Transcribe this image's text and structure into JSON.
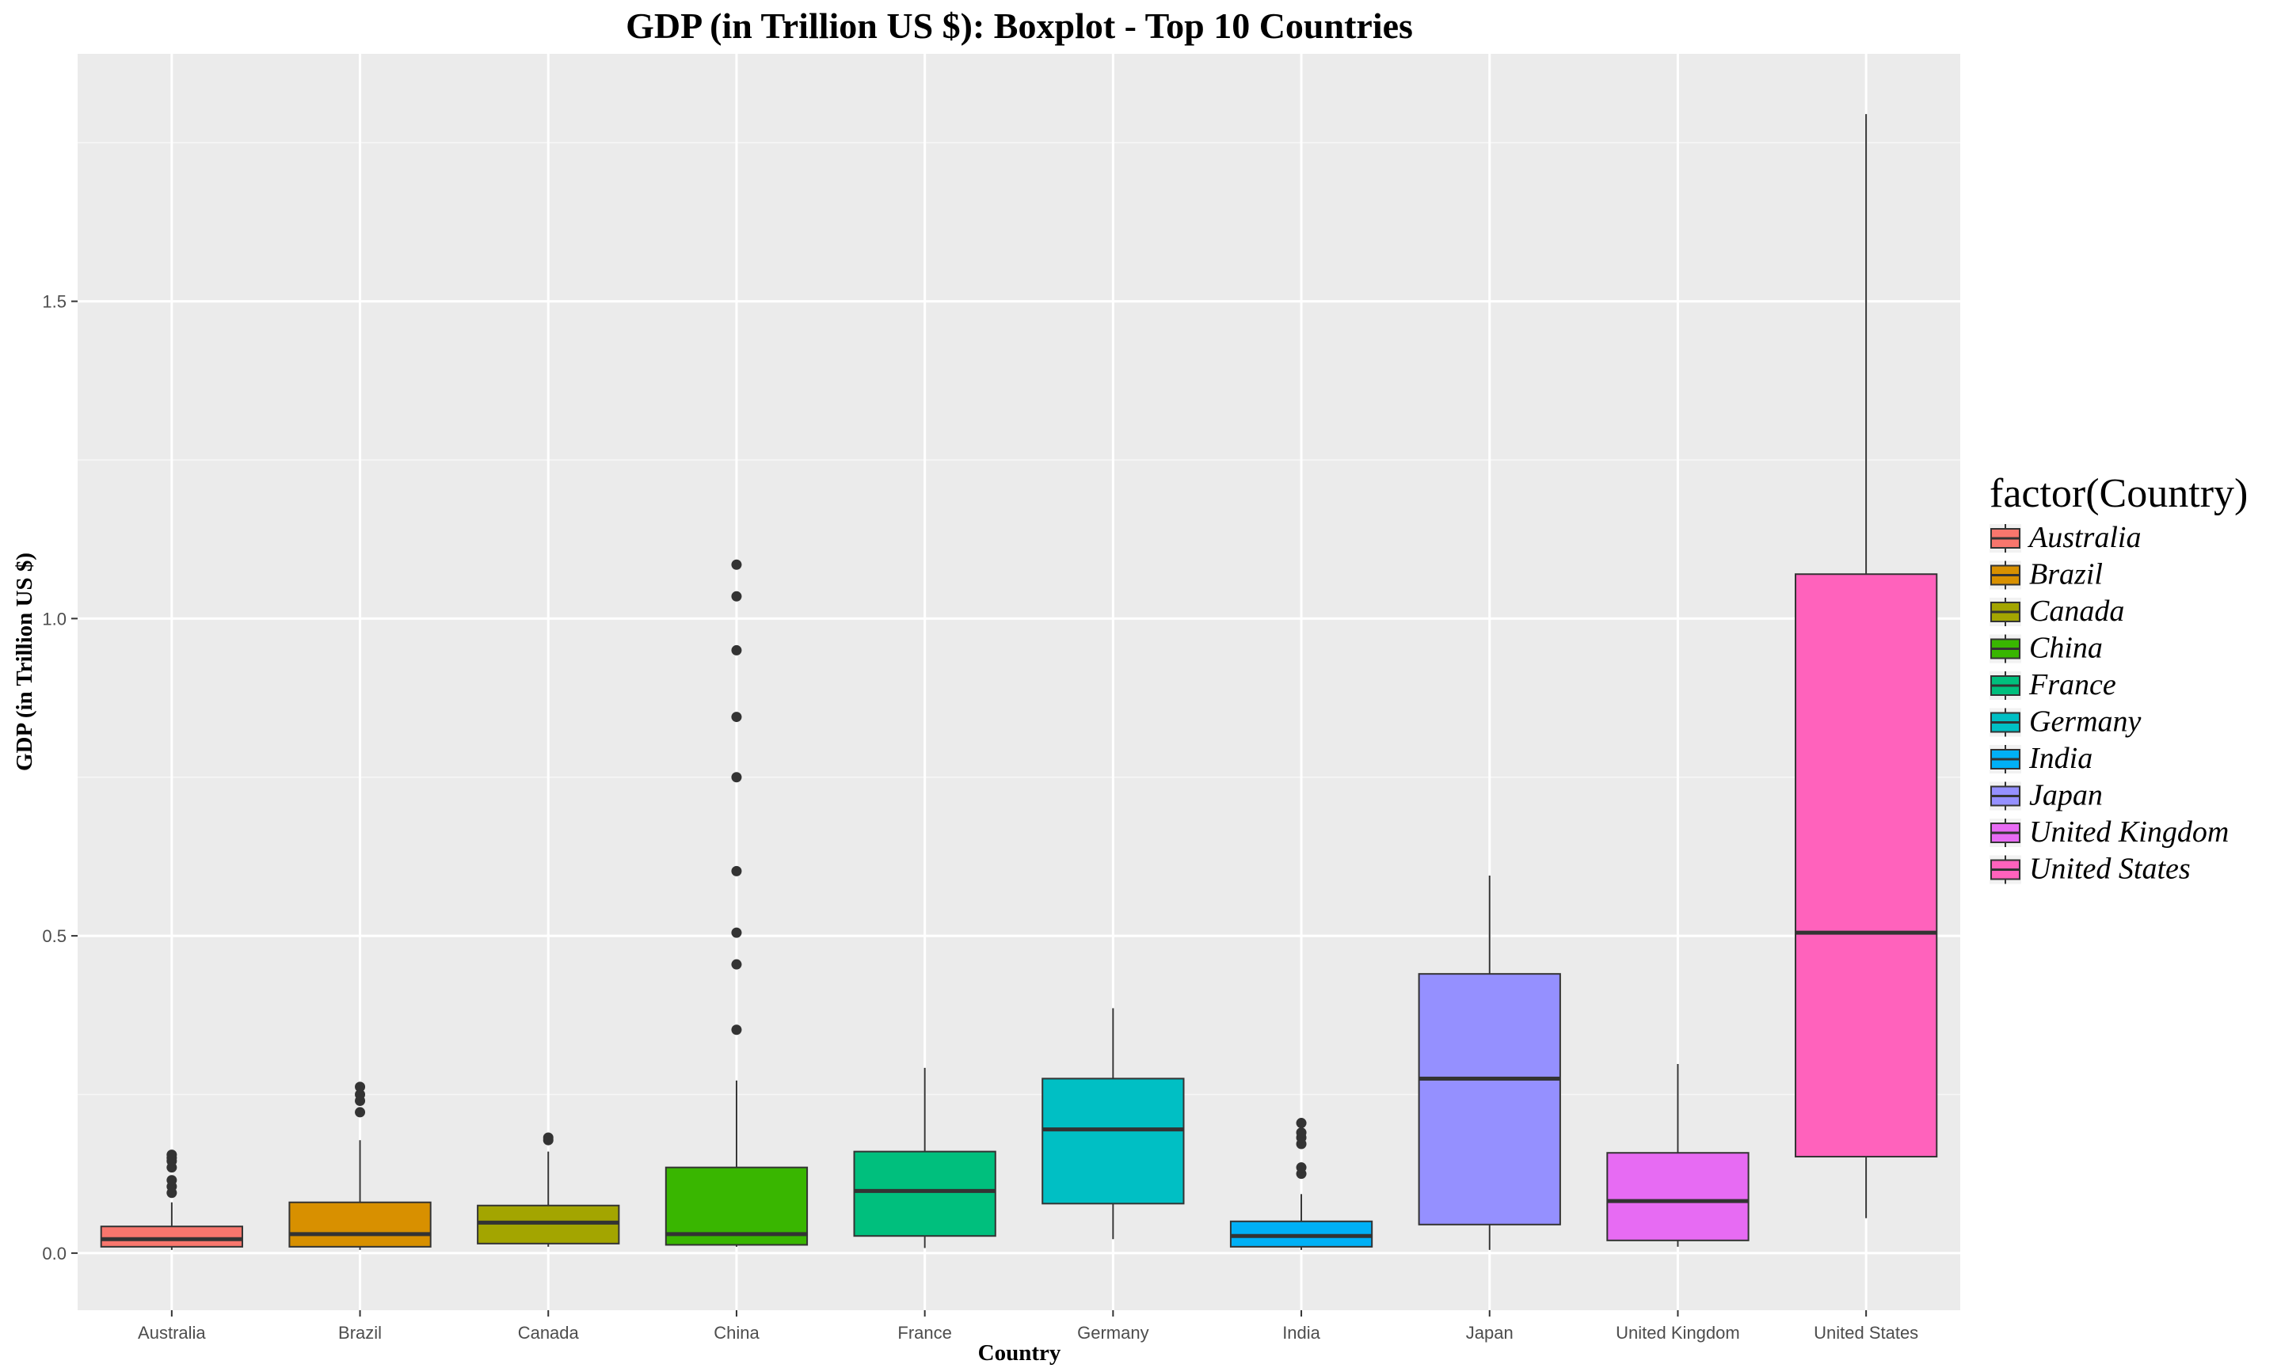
{
  "chart_data": {
    "type": "box",
    "title": "GDP (in Trillion US $): Boxplot - Top 10 Countries",
    "xlabel": "Country",
    "ylabel": "GDP (in Trillion US $)",
    "ylim": [
      -0.09,
      1.89
    ],
    "yticks": [
      0.0,
      0.5,
      1.0,
      1.5
    ],
    "ytick_labels": [
      "0.0",
      "0.5",
      "1.0",
      "1.5"
    ],
    "grid": true,
    "legend": {
      "title": "factor(Country)",
      "placement": "right"
    },
    "categories": [
      "Australia",
      "Brazil",
      "Canada",
      "China",
      "France",
      "Germany",
      "India",
      "Japan",
      "United Kingdom",
      "United States"
    ],
    "colors": [
      "#F8766D",
      "#D89000",
      "#A3A500",
      "#39B600",
      "#00BF7D",
      "#00BFC4",
      "#00B0F6",
      "#9590FF",
      "#E76BF3",
      "#FF62BC"
    ],
    "boxes": [
      {
        "name": "Australia",
        "min": 0.005,
        "q1": 0.01,
        "median": 0.022,
        "q3": 0.042,
        "max": 0.08,
        "outliers": [
          0.095,
          0.105,
          0.115,
          0.135,
          0.145,
          0.15,
          0.155
        ]
      },
      {
        "name": "Brazil",
        "min": 0.005,
        "q1": 0.01,
        "median": 0.03,
        "q3": 0.08,
        "max": 0.178,
        "outliers": [
          0.222,
          0.24,
          0.25,
          0.262
        ]
      },
      {
        "name": "Canada",
        "min": 0.01,
        "q1": 0.015,
        "median": 0.048,
        "q3": 0.075,
        "max": 0.16,
        "outliers": [
          0.178,
          0.182
        ]
      },
      {
        "name": "China",
        "min": 0.01,
        "q1": 0.013,
        "median": 0.03,
        "q3": 0.135,
        "max": 0.272,
        "outliers": [
          0.352,
          0.455,
          0.505,
          0.602,
          0.75,
          0.845,
          0.95,
          1.035,
          1.085
        ]
      },
      {
        "name": "France",
        "min": 0.008,
        "q1": 0.027,
        "median": 0.098,
        "q3": 0.16,
        "max": 0.292,
        "outliers": []
      },
      {
        "name": "Germany",
        "min": 0.022,
        "q1": 0.078,
        "median": 0.195,
        "q3": 0.275,
        "max": 0.386,
        "outliers": []
      },
      {
        "name": "India",
        "min": 0.005,
        "q1": 0.01,
        "median": 0.027,
        "q3": 0.05,
        "max": 0.093,
        "outliers": [
          0.125,
          0.135,
          0.172,
          0.182,
          0.19,
          0.205
        ]
      },
      {
        "name": "Japan",
        "min": 0.005,
        "q1": 0.045,
        "median": 0.275,
        "q3": 0.44,
        "max": 0.595,
        "outliers": []
      },
      {
        "name": "United Kingdom",
        "min": 0.01,
        "q1": 0.02,
        "median": 0.082,
        "q3": 0.158,
        "max": 0.298,
        "outliers": []
      },
      {
        "name": "United States",
        "min": 0.055,
        "q1": 0.152,
        "median": 0.505,
        "q3": 1.07,
        "max": 1.795,
        "outliers": []
      }
    ]
  }
}
